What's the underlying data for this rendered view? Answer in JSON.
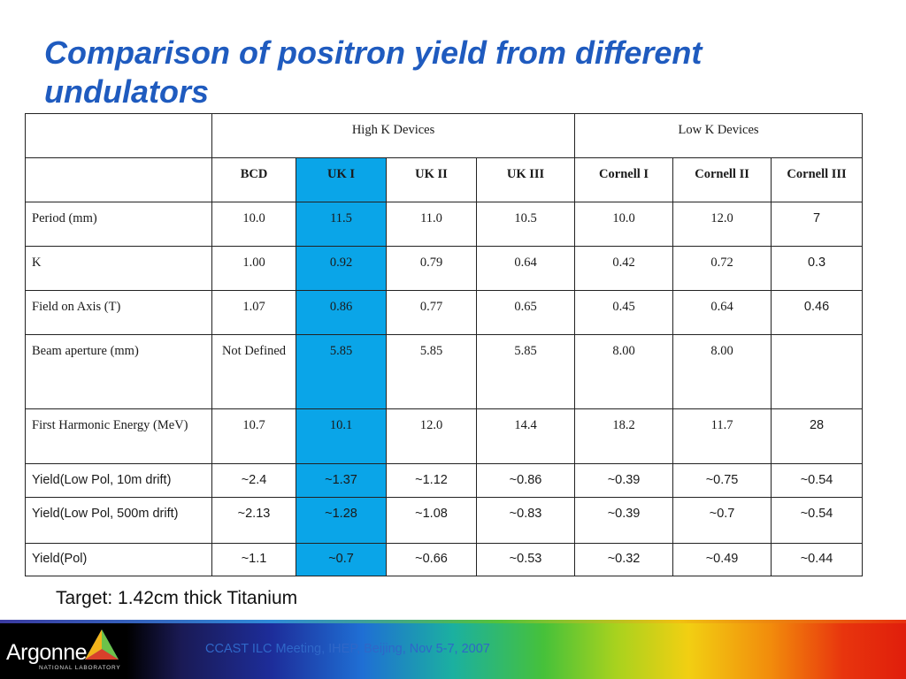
{
  "slide": {
    "title": "Comparison of positron yield from different undulators",
    "target_note": "Target: 1.42cm thick Titanium"
  },
  "table": {
    "groups": {
      "high_k": "High K Devices",
      "low_k": "Low K Devices"
    },
    "columns": [
      "BCD",
      "UK I",
      "UK II",
      "UK III",
      "Cornell I",
      "Cornell II",
      "Cornell III"
    ],
    "highlighted_column": "UK I",
    "highlight_color": "#0aa5e8",
    "rows": [
      {
        "label": "Period (mm)",
        "values": [
          "10.0",
          "11.5",
          "11.0",
          "10.5",
          "10.0",
          "12.0",
          "7"
        ]
      },
      {
        "label": "K",
        "values": [
          "1.00",
          "0.92",
          "0.79",
          "0.64",
          "0.42",
          "0.72",
          "0.3"
        ]
      },
      {
        "label": "Field on Axis (T)",
        "values": [
          "1.07",
          "0.86",
          "0.77",
          "0.65",
          "0.45",
          "0.64",
          "0.46"
        ]
      },
      {
        "label": "Beam aperture (mm)",
        "values": [
          "Not Defined",
          "5.85",
          "5.85",
          "5.85",
          "8.00",
          "8.00",
          ""
        ]
      },
      {
        "label": "First Harmonic Energy (MeV)",
        "values": [
          "10.7",
          "10.1",
          "12.0",
          "14.4",
          "18.2",
          "11.7",
          "28"
        ]
      },
      {
        "label": "Yield(Low Pol, 10m drift)",
        "values": [
          "~2.4",
          "~1.37",
          "~1.12",
          "~0.86",
          "~0.39",
          "~0.75",
          "~0.54"
        ]
      },
      {
        "label": "Yield(Low Pol, 500m drift)",
        "values": [
          "~2.13",
          "~1.28",
          "~1.08",
          "~0.83",
          "~0.39",
          "~0.7",
          "~0.54"
        ]
      },
      {
        "label": "Yield(Pol)",
        "values": [
          "~1.1",
          "~0.7",
          "~0.66",
          "~0.53",
          "~0.32",
          "~0.49",
          "~0.44"
        ]
      }
    ]
  },
  "footer": {
    "logo_text": "Argonne",
    "logo_subtext": "NATIONAL LABORATORY",
    "logo_icon": "argonne-triangle-logo",
    "meeting_text": "CCAST ILC Meeting, IHEP, Beijing, Nov 5-7, 2007",
    "text_color": "#2f67c8"
  }
}
